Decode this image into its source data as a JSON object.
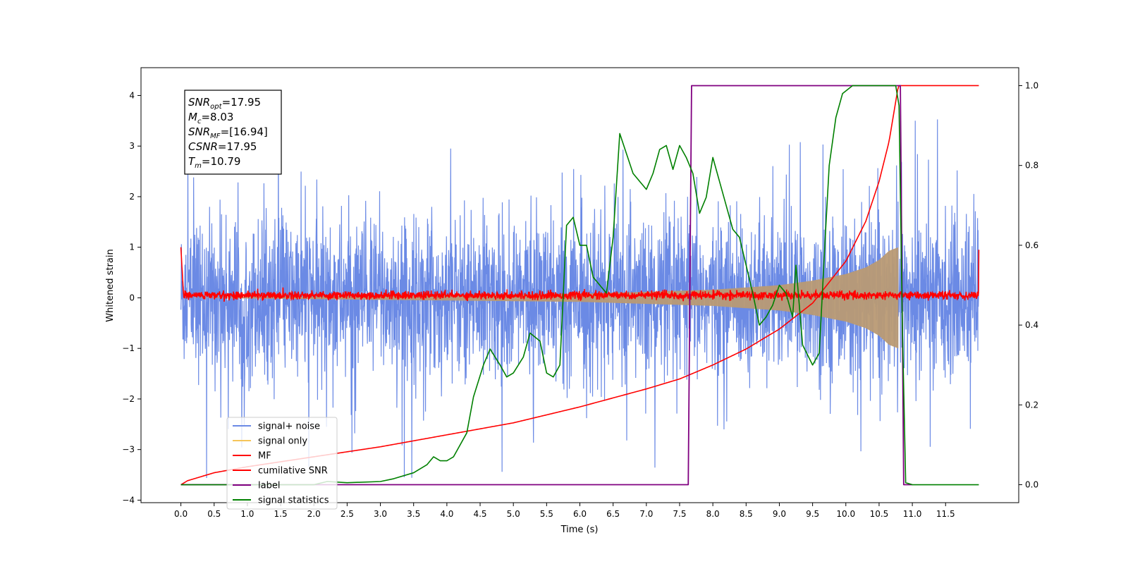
{
  "chart_data": {
    "type": "line",
    "xlabel": "Time (s)",
    "ylabel_left": "Whitened strain",
    "xlim": [
      -0.6,
      12.6
    ],
    "ylim_left": [
      -4.05,
      4.55
    ],
    "ylim_right": [
      -0.045,
      1.045
    ],
    "x_ticks": [
      "0.0",
      "0.5",
      "1.0",
      "1.5",
      "2.0",
      "2.5",
      "3.0",
      "3.5",
      "4.0",
      "4.5",
      "5.0",
      "5.5",
      "6.0",
      "6.5",
      "7.0",
      "7.5",
      "8.0",
      "8.5",
      "9.0",
      "9.5",
      "10.0",
      "10.5",
      "11.0",
      "11.5"
    ],
    "y_ticks_left": [
      "−4",
      "−3",
      "−2",
      "−1",
      "0",
      "1",
      "2",
      "3",
      "4"
    ],
    "y_ticks_right": [
      "0.0",
      "0.2",
      "0.4",
      "0.6",
      "0.8",
      "1.0"
    ],
    "colors": {
      "signal_noise": "#6b8ae5",
      "signal_only": "#f5c55a",
      "signal_overlap": "#b99a74",
      "mf": "#ff0000",
      "cumulative_snr": "#ff0000",
      "label": "#800080",
      "signal_statistics": "#008000"
    },
    "annotation": [
      {
        "sym": "SNR",
        "sub": "opt",
        "val": "=17.95"
      },
      {
        "sym": "M",
        "sub": "c",
        "val": "=8.03"
      },
      {
        "sym": "SNR",
        "sub": "MF",
        "val": "=[16.94]"
      },
      {
        "sym": "CSNR",
        "sub": "",
        "val": "=17.95"
      },
      {
        "sym": "T",
        "sub": "m",
        "val": "=10.79"
      }
    ],
    "legend": {
      "placement": "lower-left",
      "entries": [
        "signal+ noise",
        "signal only",
        "MF",
        "cumilative SNR",
        "label",
        "signal statistics"
      ]
    },
    "series": [
      {
        "name": "signal+ noise",
        "axis": "left",
        "t_range": [
          0.0,
          12.0
        ],
        "envelope_typical": 1.6,
        "envelope_peak": 3.6,
        "y_min": -3.65,
        "y_max": 4.15
      },
      {
        "name": "signal only",
        "axis": "left",
        "t_range": [
          0.0,
          10.79
        ],
        "amp_points": [
          [
            0.0,
            0.0
          ],
          [
            6.0,
            0.08
          ],
          [
            8.0,
            0.16
          ],
          [
            9.0,
            0.25
          ],
          [
            9.5,
            0.34
          ],
          [
            10.0,
            0.47
          ],
          [
            10.3,
            0.6
          ],
          [
            10.5,
            0.75
          ],
          [
            10.65,
            0.93
          ],
          [
            10.79,
            1.0
          ]
        ]
      },
      {
        "name": "MF",
        "axis": "left",
        "t_range": [
          0.0,
          12.0
        ],
        "level": 0.05,
        "jitter": 0.09,
        "start_value": 1.0,
        "end_value": 0.95
      },
      {
        "name": "cumilative SNR",
        "axis": "right",
        "points": [
          [
            0.0,
            0.0
          ],
          [
            0.1,
            0.01
          ],
          [
            0.5,
            0.03
          ],
          [
            1.0,
            0.045
          ],
          [
            2.0,
            0.07
          ],
          [
            3.0,
            0.095
          ],
          [
            4.0,
            0.125
          ],
          [
            5.0,
            0.155
          ],
          [
            6.0,
            0.195
          ],
          [
            7.0,
            0.24
          ],
          [
            7.5,
            0.265
          ],
          [
            8.0,
            0.3
          ],
          [
            8.5,
            0.34
          ],
          [
            9.0,
            0.39
          ],
          [
            9.5,
            0.455
          ],
          [
            10.0,
            0.56
          ],
          [
            10.3,
            0.66
          ],
          [
            10.5,
            0.76
          ],
          [
            10.65,
            0.86
          ],
          [
            10.79,
            1.0
          ],
          [
            12.0,
            1.0
          ]
        ]
      },
      {
        "name": "label",
        "axis": "right",
        "points": [
          [
            0.0,
            0.0
          ],
          [
            7.63,
            0.0
          ],
          [
            7.68,
            1.0
          ],
          [
            10.82,
            1.0
          ],
          [
            10.87,
            0.0
          ],
          [
            11.0,
            0.0
          ]
        ]
      },
      {
        "name": "signal statistics",
        "axis": "right",
        "points": [
          [
            0.0,
            0.0
          ],
          [
            1.0,
            0.0
          ],
          [
            2.0,
            0.0
          ],
          [
            2.2,
            0.008
          ],
          [
            2.5,
            0.005
          ],
          [
            3.0,
            0.008
          ],
          [
            3.2,
            0.015
          ],
          [
            3.5,
            0.03
          ],
          [
            3.7,
            0.05
          ],
          [
            3.8,
            0.07
          ],
          [
            3.9,
            0.06
          ],
          [
            4.0,
            0.06
          ],
          [
            4.1,
            0.07
          ],
          [
            4.3,
            0.13
          ],
          [
            4.4,
            0.22
          ],
          [
            4.55,
            0.3
          ],
          [
            4.65,
            0.34
          ],
          [
            4.8,
            0.3
          ],
          [
            4.9,
            0.27
          ],
          [
            5.0,
            0.28
          ],
          [
            5.15,
            0.32
          ],
          [
            5.25,
            0.38
          ],
          [
            5.4,
            0.36
          ],
          [
            5.5,
            0.28
          ],
          [
            5.6,
            0.27
          ],
          [
            5.7,
            0.3
          ],
          [
            5.8,
            0.65
          ],
          [
            5.9,
            0.67
          ],
          [
            6.0,
            0.6
          ],
          [
            6.1,
            0.6
          ],
          [
            6.2,
            0.52
          ],
          [
            6.3,
            0.5
          ],
          [
            6.4,
            0.48
          ],
          [
            6.5,
            0.62
          ],
          [
            6.6,
            0.88
          ],
          [
            6.7,
            0.83
          ],
          [
            6.8,
            0.78
          ],
          [
            6.9,
            0.76
          ],
          [
            7.0,
            0.74
          ],
          [
            7.1,
            0.78
          ],
          [
            7.2,
            0.84
          ],
          [
            7.3,
            0.85
          ],
          [
            7.4,
            0.79
          ],
          [
            7.5,
            0.85
          ],
          [
            7.6,
            0.82
          ],
          [
            7.7,
            0.78
          ],
          [
            7.8,
            0.68
          ],
          [
            7.9,
            0.72
          ],
          [
            8.0,
            0.82
          ],
          [
            8.1,
            0.76
          ],
          [
            8.2,
            0.7
          ],
          [
            8.3,
            0.64
          ],
          [
            8.4,
            0.62
          ],
          [
            8.5,
            0.55
          ],
          [
            8.6,
            0.48
          ],
          [
            8.7,
            0.4
          ],
          [
            8.8,
            0.42
          ],
          [
            8.9,
            0.45
          ],
          [
            9.0,
            0.5
          ],
          [
            9.1,
            0.48
          ],
          [
            9.2,
            0.42
          ],
          [
            9.25,
            0.55
          ],
          [
            9.35,
            0.35
          ],
          [
            9.5,
            0.3
          ],
          [
            9.6,
            0.33
          ],
          [
            9.7,
            0.65
          ],
          [
            9.75,
            0.8
          ],
          [
            9.85,
            0.92
          ],
          [
            9.95,
            0.98
          ],
          [
            10.1,
            1.0
          ],
          [
            10.5,
            1.0
          ],
          [
            10.75,
            1.0
          ],
          [
            10.8,
            0.95
          ],
          [
            10.85,
            0.4
          ],
          [
            10.9,
            0.005
          ],
          [
            11.0,
            0.0
          ],
          [
            12.0,
            0.0
          ]
        ]
      }
    ]
  }
}
